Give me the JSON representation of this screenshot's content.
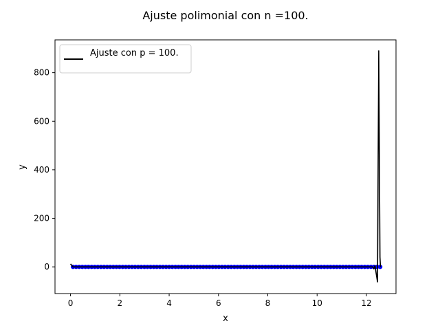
{
  "chart_data": {
    "type": "line",
    "title": "Ajuste polimonial con n =100.",
    "xlabel": "x",
    "ylabel": "y",
    "xlim": [
      -0.63,
      13.2
    ],
    "ylim": [
      -110,
      935
    ],
    "xticks": [
      0,
      2,
      4,
      6,
      8,
      10,
      12
    ],
    "yticks": [
      0,
      200,
      400,
      600,
      800
    ],
    "xtick_labels": [
      "0",
      "2",
      "4",
      "6",
      "8",
      "10",
      "12"
    ],
    "ytick_labels": [
      "0",
      "200",
      "400",
      "600",
      "800"
    ],
    "grid": false,
    "legend": {
      "placement": "upper-left",
      "entries": [
        "Ajuste con p = 100."
      ]
    },
    "series": [
      {
        "name": "Ajuste con p = 100.",
        "kind": "line",
        "color": "#000000",
        "x": [
          0.0,
          0.1,
          0.3,
          1,
          2,
          3,
          4,
          5,
          6,
          7,
          8,
          9,
          10,
          11,
          12,
          12.15,
          12.25,
          12.3,
          12.35,
          12.4,
          12.45,
          12.5,
          12.55,
          12.57
        ],
        "y": [
          12,
          0,
          0,
          0,
          0,
          0,
          0,
          0,
          0,
          0,
          0,
          0,
          0,
          0,
          0,
          0,
          0,
          -8,
          5,
          -30,
          -62,
          890,
          40,
          0
        ]
      },
      {
        "kind": "scatter",
        "color": "#0000ff",
        "x_start": 0.1,
        "x_end": 12.56,
        "count": 100,
        "y": 0
      }
    ]
  }
}
